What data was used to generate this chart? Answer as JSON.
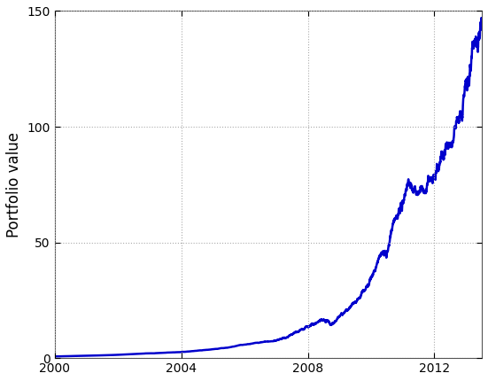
{
  "title": "",
  "ylabel": "Portfolio value",
  "xlabel": "",
  "xlim": [
    2000,
    2013.5
  ],
  "ylim": [
    0,
    150
  ],
  "yticks": [
    0,
    50,
    100,
    150
  ],
  "xticks": [
    2000,
    2004,
    2008,
    2012
  ],
  "line_color": "#0000CC",
  "line_width": 1.8,
  "grid_color": "#aaaaaa",
  "grid_linestyle": ":",
  "background_color": "#ffffff",
  "figsize": [
    5.51,
    4.3
  ],
  "dpi": 100
}
